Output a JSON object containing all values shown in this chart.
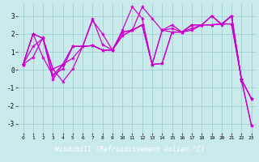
{
  "xlabel": "Windchill (Refroidissement éolien,°C)",
  "xlim": [
    -0.5,
    23.5
  ],
  "ylim": [
    -3.5,
    3.7
  ],
  "xticks": [
    0,
    1,
    2,
    3,
    4,
    5,
    6,
    7,
    8,
    9,
    10,
    11,
    12,
    13,
    14,
    15,
    16,
    17,
    18,
    19,
    20,
    21,
    22,
    23
  ],
  "yticks": [
    -3,
    -2,
    -1,
    0,
    1,
    2,
    3
  ],
  "bg_color": "#c8eaea",
  "line_color": "#cc00cc",
  "grid_color": "#99cccc",
  "xlabel_bg": "#2a2a6a",
  "xlabel_fg": "#ffffff",
  "lines": [
    [
      0.3,
      2.0,
      0.7,
      -0.3,
      0.05,
      1.3,
      1.3,
      2.75,
      2.0,
      1.1,
      2.2,
      3.5,
      2.85,
      0.3,
      2.2,
      2.5,
      2.1,
      2.3,
      2.5,
      3.0,
      2.5,
      3.0,
      -0.6,
      -3.1
    ],
    [
      0.3,
      0.7,
      1.8,
      -0.55,
      0.3,
      1.3,
      1.3,
      2.85,
      1.4,
      1.1,
      1.9,
      2.2,
      3.5,
      2.85,
      2.2,
      2.3,
      2.1,
      2.5,
      2.5,
      3.0,
      2.55,
      3.0,
      -0.55,
      -1.6
    ],
    [
      0.3,
      1.3,
      1.75,
      -0.3,
      0.3,
      1.3,
      1.3,
      1.35,
      1.1,
      1.1,
      1.9,
      2.2,
      2.5,
      0.3,
      2.2,
      2.1,
      2.1,
      2.2,
      2.5,
      2.5,
      2.55,
      3.0,
      -0.55,
      -1.6
    ],
    [
      0.3,
      2.0,
      1.75,
      0.05,
      0.3,
      0.65,
      1.3,
      1.35,
      1.1,
      1.1,
      2.1,
      2.2,
      2.5,
      0.3,
      0.35,
      2.1,
      2.1,
      2.5,
      2.5,
      2.5,
      2.55,
      2.55,
      -0.55,
      -1.6
    ],
    [
      0.3,
      2.0,
      1.75,
      0.05,
      -0.65,
      0.05,
      1.3,
      1.35,
      1.1,
      1.1,
      2.1,
      2.2,
      2.5,
      0.3,
      0.35,
      2.1,
      2.1,
      2.5,
      2.5,
      2.5,
      2.55,
      2.55,
      -0.55,
      -3.1
    ]
  ]
}
